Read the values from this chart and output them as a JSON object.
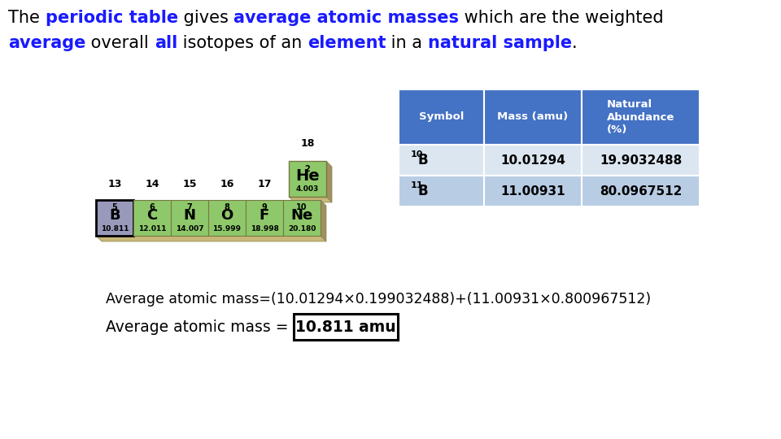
{
  "title_parts": [
    {
      "text": "The ",
      "color": "#000000",
      "bold": false
    },
    {
      "text": "periodic table",
      "color": "#1a1aff",
      "bold": true
    },
    {
      "text": " gives ",
      "color": "#000000",
      "bold": false
    },
    {
      "text": "average atomic masses",
      "color": "#1a1aff",
      "bold": true
    },
    {
      "text": " which are the weighted",
      "color": "#000000",
      "bold": false
    }
  ],
  "line2_parts": [
    {
      "text": "average",
      "color": "#1a1aff",
      "bold": true
    },
    {
      "text": " overall ",
      "color": "#000000",
      "bold": false
    },
    {
      "text": "all",
      "color": "#1a1aff",
      "bold": true
    },
    {
      "text": " isotopes of an ",
      "color": "#000000",
      "bold": false
    },
    {
      "text": "element",
      "color": "#1a1aff",
      "bold": true
    },
    {
      "text": " in a ",
      "color": "#000000",
      "bold": false
    },
    {
      "text": "natural sample",
      "color": "#1a1aff",
      "bold": true
    },
    {
      "text": ".",
      "color": "#000000",
      "bold": false
    }
  ],
  "table_header_bg": "#4472c4",
  "table_header_text": "#ffffff",
  "table_row1_bg": "#dce6f1",
  "table_row2_bg": "#b8cce4",
  "table_col_headers": [
    "Symbol",
    "Mass (amu)",
    "Natural\nAbundance\n(%)"
  ],
  "table_rows": [
    {
      "symbol_super": "10",
      "symbol_main": "B",
      "mass": "10.01294",
      "abundance": "19.9032488"
    },
    {
      "symbol_super": "11",
      "symbol_main": "B",
      "mass": "11.00931",
      "abundance": "80.0967512"
    }
  ],
  "formula_text": "Average atomic mass=(10.01294×0.199032488)+(11.00931×0.800967512)",
  "result_label": "Average atomic mass = ",
  "result_value": "10.811 amu",
  "bg_color": "#ffffff",
  "periodic_elements": [
    {
      "num": "5",
      "sym": "B",
      "mass": "10.811",
      "highlighted": true
    },
    {
      "num": "6",
      "sym": "C",
      "mass": "12.011",
      "highlighted": false
    },
    {
      "num": "7",
      "sym": "N",
      "mass": "14.007",
      "highlighted": false
    },
    {
      "num": "8",
      "sym": "O",
      "mass": "15.999",
      "highlighted": false
    },
    {
      "num": "9",
      "sym": "F",
      "mass": "18.998",
      "highlighted": false
    },
    {
      "num": "10",
      "sym": "Ne",
      "mass": "20.180",
      "highlighted": false
    }
  ],
  "he_element": {
    "num": "2",
    "sym": "He",
    "mass": "4.003"
  },
  "group_labels": [
    "13",
    "14",
    "15",
    "16",
    "17"
  ],
  "group_label_18": "18",
  "element_bg": "#8ec86a",
  "element_highlight_fill": "#9999bb",
  "shelf_color": "#c8b878",
  "shelf_side_color": "#a09060"
}
